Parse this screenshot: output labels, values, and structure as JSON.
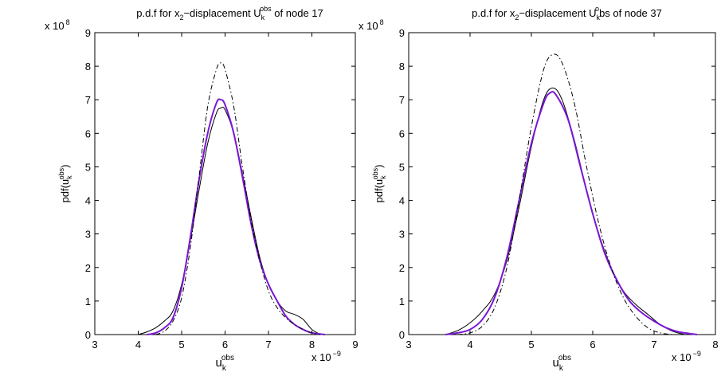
{
  "chart_data": [
    {
      "type": "line",
      "title_parts": [
        "p.d.f for x",
        "2",
        "−displacement U",
        "k",
        "obs",
        " of node 17"
      ],
      "ylabel_parts": [
        "pdf(u",
        "k",
        "obs",
        ")"
      ],
      "xlabel_parts": [
        "u",
        "k",
        "obs"
      ],
      "x_exponent": "x 10",
      "x_exponent_power": "−9",
      "y_exponent": "x 10",
      "y_exponent_power": "8",
      "xlim": [
        3,
        9
      ],
      "ylim": [
        0,
        9
      ],
      "xticks": [
        "3",
        "4",
        "5",
        "6",
        "7",
        "8",
        "9"
      ],
      "yticks": [
        "0",
        "1",
        "2",
        "3",
        "4",
        "5",
        "6",
        "7",
        "8",
        "9"
      ],
      "series": [
        {
          "style": "solid",
          "color": "#000000",
          "x": [
            4.0,
            4.2,
            4.4,
            4.6,
            4.8,
            5.0,
            5.2,
            5.4,
            5.6,
            5.8,
            5.9,
            6.0,
            6.2,
            6.4,
            6.6,
            6.8,
            7.0,
            7.2,
            7.4,
            7.6,
            7.8,
            8.0,
            8.2
          ],
          "y": [
            0.0,
            0.08,
            0.2,
            0.4,
            0.7,
            1.5,
            2.8,
            4.3,
            5.7,
            6.6,
            6.75,
            6.7,
            6.0,
            4.8,
            3.5,
            2.3,
            1.5,
            1.0,
            0.7,
            0.6,
            0.45,
            0.15,
            0.0
          ]
        },
        {
          "style": "solid",
          "color": "#7a16d6",
          "x": [
            4.2,
            4.4,
            4.6,
            4.8,
            5.0,
            5.2,
            5.4,
            5.6,
            5.8,
            5.9,
            6.0,
            6.2,
            6.4,
            6.6,
            6.8,
            7.0,
            7.2,
            7.4,
            7.6,
            7.8,
            8.0,
            8.3
          ],
          "y": [
            0.0,
            0.05,
            0.2,
            0.5,
            1.4,
            2.9,
            4.6,
            6.0,
            6.9,
            7.0,
            6.85,
            6.0,
            4.7,
            3.3,
            2.2,
            1.5,
            1.0,
            0.55,
            0.3,
            0.15,
            0.05,
            0.0
          ]
        },
        {
          "style": "dashdot",
          "color": "#000000",
          "x": [
            4.4,
            4.6,
            4.8,
            5.0,
            5.2,
            5.4,
            5.6,
            5.8,
            5.9,
            6.0,
            6.2,
            6.4,
            6.6,
            6.8,
            7.0,
            7.2,
            7.4,
            7.6,
            7.8,
            8.0,
            8.2
          ],
          "y": [
            0.0,
            0.1,
            0.4,
            1.1,
            2.6,
            4.7,
            6.8,
            7.9,
            8.1,
            7.9,
            6.8,
            5.0,
            3.4,
            2.2,
            1.3,
            0.8,
            0.5,
            0.3,
            0.15,
            0.05,
            0.0
          ]
        }
      ]
    },
    {
      "type": "line",
      "title_parts": [
        "p.d.f for x",
        "2",
        "−displacement U",
        "k",
        "o",
        "bs of node 37"
      ],
      "ylabel_parts": [
        "pdf(u",
        "k",
        "obs",
        ")"
      ],
      "xlabel_parts": [
        "u",
        "k",
        "obs"
      ],
      "x_exponent": "x 10",
      "x_exponent_power": "−9",
      "y_exponent": "x 10",
      "y_exponent_power": "8",
      "xlim": [
        3,
        8
      ],
      "ylim": [
        0,
        9
      ],
      "xticks": [
        "3",
        "4",
        "5",
        "6",
        "7",
        "8"
      ],
      "yticks": [
        "0",
        "1",
        "2",
        "3",
        "4",
        "5",
        "6",
        "7",
        "8",
        "9"
      ],
      "series": [
        {
          "style": "solid",
          "color": "#000000",
          "x": [
            3.6,
            3.8,
            4.0,
            4.2,
            4.4,
            4.6,
            4.8,
            5.0,
            5.2,
            5.35,
            5.5,
            5.7,
            5.9,
            6.1,
            6.3,
            6.5,
            6.7,
            6.9,
            7.1,
            7.3,
            7.5
          ],
          "y": [
            0.0,
            0.12,
            0.35,
            0.7,
            1.2,
            2.2,
            3.8,
            5.6,
            7.0,
            7.35,
            7.0,
            5.8,
            4.3,
            3.0,
            2.0,
            1.3,
            0.9,
            0.6,
            0.3,
            0.1,
            0.0
          ]
        },
        {
          "style": "solid",
          "color": "#7a16d6",
          "x": [
            3.6,
            3.8,
            4.0,
            4.2,
            4.4,
            4.6,
            4.8,
            5.0,
            5.2,
            5.3,
            5.4,
            5.6,
            5.8,
            6.0,
            6.2,
            6.4,
            6.6,
            6.8,
            7.0,
            7.2,
            7.4,
            7.7
          ],
          "y": [
            0.0,
            0.05,
            0.15,
            0.45,
            1.1,
            2.3,
            4.0,
            5.7,
            6.9,
            7.2,
            7.15,
            6.4,
            5.0,
            3.6,
            2.4,
            1.6,
            1.0,
            0.65,
            0.4,
            0.2,
            0.08,
            0.0
          ]
        },
        {
          "style": "dashdot",
          "color": "#000000",
          "x": [
            3.8,
            4.0,
            4.2,
            4.4,
            4.6,
            4.8,
            5.0,
            5.2,
            5.35,
            5.5,
            5.7,
            5.9,
            6.1,
            6.3,
            6.5,
            6.7,
            6.9,
            7.1,
            7.3
          ],
          "y": [
            0.0,
            0.05,
            0.25,
            0.8,
            2.0,
            4.0,
            6.2,
            7.9,
            8.35,
            8.1,
            6.9,
            5.0,
            3.3,
            2.0,
            1.1,
            0.55,
            0.2,
            0.05,
            0.0
          ]
        }
      ]
    }
  ]
}
